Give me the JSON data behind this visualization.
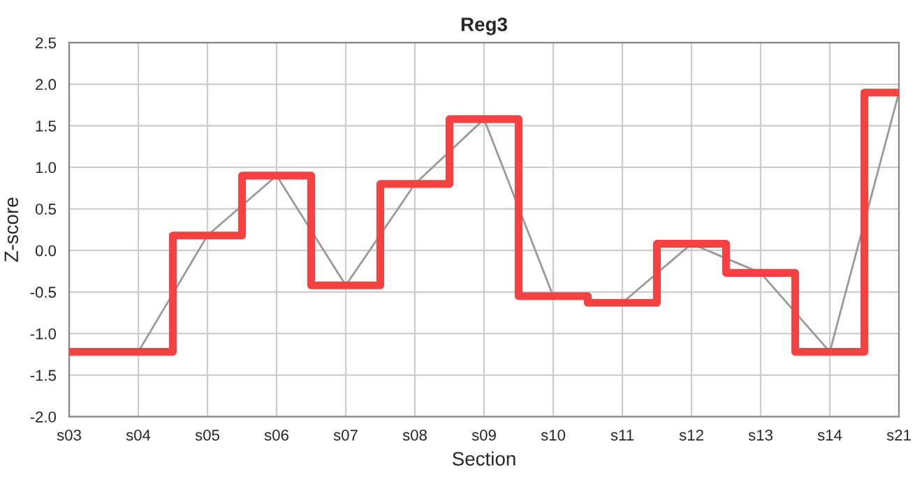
{
  "chart_data": {
    "type": "step",
    "title": "Reg3",
    "xlabel": "Section",
    "ylabel": "Z-score",
    "categories": [
      "s03",
      "s04",
      "s05",
      "s06",
      "s07",
      "s08",
      "s09",
      "s10",
      "s11",
      "s12",
      "s13",
      "s14",
      "s21"
    ],
    "series": [
      {
        "type": "line",
        "color": "#999999",
        "values": [
          -1.22,
          -1.22,
          0.18,
          0.9,
          -0.42,
          0.8,
          1.58,
          -0.55,
          -0.63,
          0.08,
          -0.27,
          -1.22,
          1.9
        ]
      },
      {
        "color": "#f44242",
        "values": [
          -1.22,
          -1.22,
          0.18,
          0.9,
          -0.42,
          0.8,
          1.58,
          -0.55,
          -0.63,
          0.08,
          -0.27,
          -1.22,
          1.9
        ]
      }
    ],
    "ylim": [
      -2,
      2.5
    ],
    "yticks": [
      {
        "value": -2,
        "label": "-2.0"
      },
      {
        "value": -1.5,
        "label": "-1.5"
      },
      {
        "value": -1,
        "label": "-1.0"
      },
      {
        "value": -0.5,
        "label": "-0.5"
      },
      {
        "value": 0,
        "label": "0.0"
      },
      {
        "value": 0.5,
        "label": "0.5"
      },
      {
        "value": 1,
        "label": "1.0"
      },
      {
        "value": 1.5,
        "label": "1.5"
      },
      {
        "value": 2,
        "label": "2.0"
      },
      {
        "value": 2.5,
        "label": "2.5"
      }
    ],
    "grid": true,
    "legend": false,
    "marker": "none"
  }
}
